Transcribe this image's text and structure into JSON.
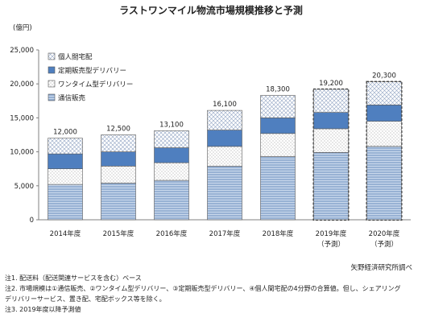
{
  "chart_data": {
    "type": "bar",
    "stacked": true,
    "title": "ラストワンマイル物流市場規模推移と予測",
    "ylabel": "(億円)",
    "ylim": [
      0,
      25000
    ],
    "yticks": [
      "0",
      "5,000",
      "10,000",
      "15,000",
      "20,000",
      "25,000"
    ],
    "categories": [
      {
        "label": "2014年度",
        "sub": ""
      },
      {
        "label": "2015年度",
        "sub": ""
      },
      {
        "label": "2016年度",
        "sub": ""
      },
      {
        "label": "2017年度",
        "sub": ""
      },
      {
        "label": "2018年度",
        "sub": ""
      },
      {
        "label": "2019年度",
        "sub": "（予測）"
      },
      {
        "label": "2020年度",
        "sub": "（予測）"
      }
    ],
    "forecast": [
      false,
      false,
      false,
      false,
      false,
      true,
      true
    ],
    "totals": [
      "12,000",
      "12,500",
      "13,100",
      "16,100",
      "18,300",
      "19,200",
      "20,300"
    ],
    "series": [
      {
        "name": "通信販売",
        "values": [
          5200,
          5400,
          5800,
          7900,
          9300,
          9900,
          10800
        ]
      },
      {
        "name": "ワンタイム型デリバリー",
        "values": [
          2300,
          2500,
          2600,
          2900,
          3400,
          3500,
          3700
        ]
      },
      {
        "name": "定期販売型デリバリー",
        "values": [
          2200,
          2100,
          2200,
          2400,
          2300,
          2400,
          2400
        ]
      },
      {
        "name": "個人間宅配",
        "values": [
          2300,
          2500,
          2500,
          2900,
          3300,
          3400,
          3400
        ]
      }
    ],
    "legend": [
      "個人間宅配",
      "定期販売型デリバリー",
      "ワンタイム型デリバリー",
      "通信販売"
    ],
    "legend_position": "top-left",
    "grid": false
  },
  "source": "矢野経済研究所調べ",
  "notes": [
    "注1. 配送料（配送関連サービスを含む）ベース",
    "注2. 市場規模は①通信販売、②ワンタイム型デリバリー、③定期販売型デリバリー、④個人間宅配の4分野の合算値。但し、シェアリング",
    "デリバリーサービス、置き配、宅配ボックス等を除く。",
    "注3. 2019年度以降予測値"
  ],
  "colors": {
    "通信販売_fill": "#b9cde5",
    "通信販売_line": "#5b82b8",
    "ワンタイム型デリバリー_fill": "#ffffff",
    "ワンタイム型デリバリー_dot": "#8a8a8a",
    "定期販売型デリバリー": "#4f7fbf",
    "個人間宅配_line": "#8fa3c2",
    "bar_outline": "#595959",
    "axis": "#808080"
  }
}
